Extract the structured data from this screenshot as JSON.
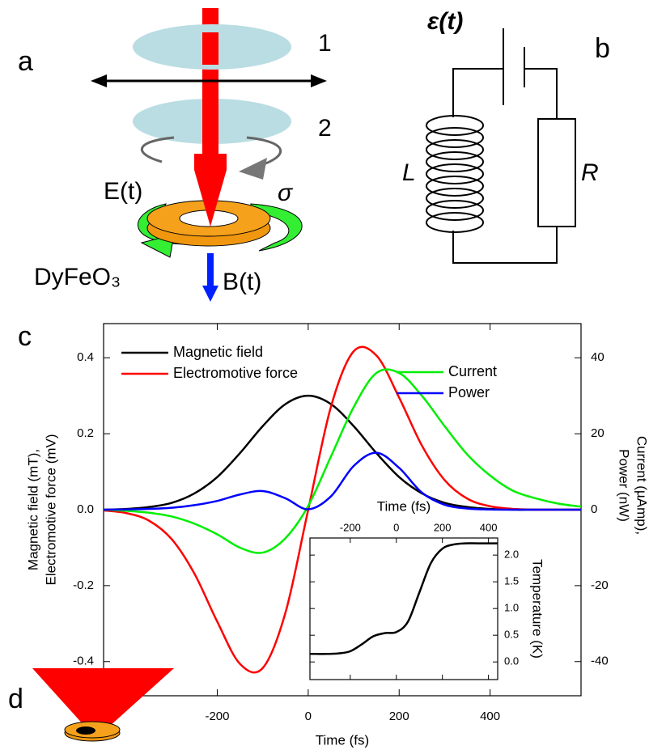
{
  "diagram": {
    "panel_a": "a",
    "panel_b": "b",
    "panel_c": "c",
    "panel_d": "d",
    "lens_1": "1",
    "lens_2": "2",
    "efield": "E(t)",
    "sigma": "σ",
    "material": "DyFeO₃",
    "bfield": "B(t)",
    "emf": "ε(t)",
    "inductor": "L",
    "resistor": "R"
  },
  "chart_data": [
    {
      "type": "line",
      "xlabel": "Time (fs)",
      "ylabel": [
        "Magnetic field (mT),",
        "Electromotive force (mV)"
      ],
      "y2label": [
        "Current (µAmp),",
        "Power (nW)"
      ],
      "xlim": [
        -450,
        600
      ],
      "ylim": [
        -0.49,
        0.49
      ],
      "y2lim": [
        -49,
        49
      ],
      "xticks": [
        -200,
        0,
        200,
        400
      ],
      "yticks": [
        0.4,
        0.2,
        {
          "value": 0,
          "label": "0.0"
        },
        -0.2,
        -0.4
      ],
      "y2ticks": [
        40,
        20,
        0,
        -20,
        -40
      ],
      "x": [
        -450,
        -400,
        -350,
        -300,
        -250,
        -200,
        -150,
        -100,
        -50,
        0,
        50,
        100,
        150,
        200,
        250,
        300,
        350,
        400,
        450,
        500,
        550,
        600
      ],
      "series": [
        {
          "name": "Magnetic field",
          "color": "#000000",
          "axis": "y",
          "values": [
            0.0,
            0.002,
            0.007,
            0.018,
            0.043,
            0.086,
            0.149,
            0.22,
            0.278,
            0.3,
            0.278,
            0.22,
            0.149,
            0.086,
            0.043,
            0.018,
            0.007,
            0.002,
            0.0,
            0.0,
            0.0,
            0.0
          ]
        },
        {
          "name": "Electromotive force",
          "color": "#ff0000",
          "axis": "y",
          "values": [
            -0.002,
            -0.009,
            -0.029,
            -0.078,
            -0.169,
            -0.295,
            -0.406,
            -0.417,
            -0.271,
            0.0,
            0.271,
            0.417,
            0.406,
            0.295,
            0.169,
            0.078,
            0.029,
            0.009,
            0.002,
            0.0,
            0.0,
            0.0
          ]
        },
        {
          "name": "Current",
          "color": "#00ee00",
          "axis": "y2",
          "values": [
            0,
            -0.3,
            -0.8,
            -1.8,
            -3.7,
            -6.5,
            -10,
            -11.3,
            -7.5,
            1,
            14,
            27,
            36,
            36,
            30,
            22,
            14.5,
            9,
            5,
            3,
            1.6,
            0.8
          ]
        },
        {
          "name": "Power",
          "color": "#0000ff",
          "axis": "y2",
          "values": [
            0,
            0.05,
            0.2,
            0.5,
            1.2,
            2.3,
            4,
            4.9,
            3,
            0.1,
            3.5,
            11.5,
            15,
            11,
            4.5,
            1.3,
            0.3,
            0.05,
            0,
            0,
            0,
            0
          ]
        }
      ]
    },
    {
      "type": "line",
      "xlabel": "Time (fs)",
      "ylabel": "Temperature (K)",
      "xlim": [
        -375,
        440
      ],
      "ylim": [
        -0.33,
        2.32
      ],
      "xticks": [
        -200,
        0,
        200,
        400
      ],
      "yticks": [
        {
          "value": 0,
          "label": "0.0"
        },
        0.5,
        {
          "value": 1,
          "label": "1.0"
        },
        1.5,
        {
          "value": 2,
          "label": "2.0"
        }
      ],
      "x": [
        -375,
        -350,
        -300,
        -250,
        -200,
        -150,
        -100,
        -50,
        0,
        50,
        100,
        150,
        200,
        250,
        300,
        350,
        400,
        440
      ],
      "color": "#000000",
      "values": [
        0.15,
        0.15,
        0.15,
        0.16,
        0.2,
        0.33,
        0.48,
        0.54,
        0.56,
        0.75,
        1.3,
        1.85,
        2.12,
        2.2,
        2.22,
        2.22,
        2.22,
        2.22
      ]
    }
  ]
}
